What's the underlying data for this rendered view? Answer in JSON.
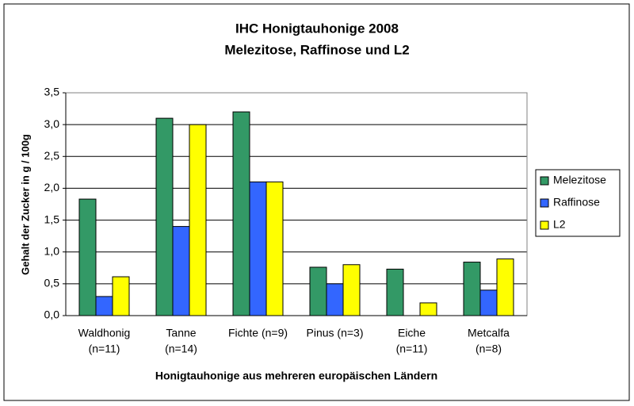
{
  "chart_data": {
    "type": "bar",
    "title": "IHC Honigtauhonige 2008",
    "subtitle": "Melezitose, Raffinose und L2",
    "x_label": "Honigtauhonige aus mehreren europäischen Ländern",
    "y_label": "Gehalt der Zucker in g / 100g",
    "categories": [
      [
        "Waldhonig",
        "(n=11)"
      ],
      [
        "Tanne",
        "(n=14)"
      ],
      [
        "Fichte (n=9)"
      ],
      [
        "Pinus (n=3)"
      ],
      [
        "Eiche",
        "(n=11)"
      ],
      [
        "Metcalfa",
        "(n=8)"
      ]
    ],
    "series": [
      {
        "name": "Melezitose",
        "color": "#339966",
        "values": [
          1.83,
          3.1,
          3.2,
          0.76,
          0.73,
          0.84
        ]
      },
      {
        "name": "Raffinose",
        "color": "#3366ff",
        "values": [
          0.3,
          1.4,
          2.1,
          0.5,
          null,
          0.4
        ]
      },
      {
        "name": "L2",
        "color": "#ffff00",
        "values": [
          0.61,
          3.0,
          2.1,
          0.8,
          0.2,
          0.89
        ]
      }
    ],
    "ylim": [
      0,
      3.5
    ],
    "yticks": [
      {
        "value": 0,
        "label": "0,0"
      },
      {
        "value": 0.5,
        "label": "0,5"
      },
      {
        "value": 1,
        "label": "1,0"
      },
      {
        "value": 1.5,
        "label": "1,5"
      },
      {
        "value": 2,
        "label": "2,0"
      },
      {
        "value": 2.5,
        "label": "2,5"
      },
      {
        "value": 3,
        "label": "3,0"
      },
      {
        "value": 3.5,
        "label": "3,5"
      }
    ],
    "grid": true,
    "legend": "right"
  }
}
